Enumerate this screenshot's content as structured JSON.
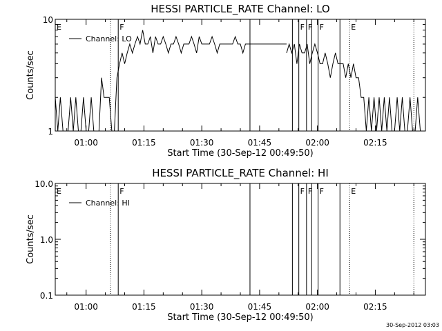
{
  "chart_data": [
    {
      "type": "line",
      "title": "HESSI PARTICLE_RATE Channel: LO",
      "xlabel": "Start Time (30-Sep-12 00:49:50)",
      "ylabel": "Counts/sec",
      "xlim": [
        "00:52",
        "02:28"
      ],
      "ylim": [
        1,
        10
      ],
      "yscale": "log",
      "yticks": [
        "1",
        "10"
      ],
      "xticks": [
        "01:00",
        "01:15",
        "01:30",
        "01:45",
        "02:00",
        "02:15"
      ],
      "grid": false,
      "legend": {
        "position": "top-left",
        "entries": [
          "Channel: LO"
        ]
      },
      "series": [
        {
          "name": "Channel: LO",
          "segments": [
            {
              "x": [
                "00:52:00",
                "00:52:40",
                "00:53:20",
                "00:54:00",
                "00:54:40",
                "00:55:20",
                "00:56:00",
                "00:56:40",
                "00:57:20",
                "00:58:00",
                "00:58:40",
                "00:59:20",
                "01:00:00",
                "01:00:40",
                "01:01:20",
                "01:02:00",
                "01:02:40",
                "01:03:20",
                "01:04:00",
                "01:04:40",
                "01:05:20",
                "01:06:00",
                "01:06:40",
                "01:07:20",
                "01:08:00",
                "01:08:40",
                "01:09:20",
                "01:10:00",
                "01:10:40",
                "01:11:20",
                "01:12:00",
                "01:12:40",
                "01:13:20",
                "01:14:00",
                "01:14:40",
                "01:15:20",
                "01:16:00",
                "01:16:40",
                "01:17:20",
                "01:18:00",
                "01:18:40",
                "01:19:20",
                "01:20:00",
                "01:20:40",
                "01:21:20",
                "01:22:00",
                "01:22:40",
                "01:23:20",
                "01:24:00",
                "01:24:40",
                "01:25:20",
                "01:26:00",
                "01:26:40",
                "01:27:20",
                "01:28:00",
                "01:28:40",
                "01:29:20",
                "01:30:00",
                "01:30:40",
                "01:31:20",
                "01:32:00",
                "01:32:40",
                "01:33:20",
                "01:34:00",
                "01:34:40",
                "01:35:20",
                "01:36:00",
                "01:36:40",
                "01:37:20",
                "01:38:00",
                "01:38:40",
                "01:39:20",
                "01:40:00",
                "01:40:40",
                "01:41:20",
                "01:42:00",
                "01:42:40",
                "01:43:20"
              ],
              "y": [
                2,
                1,
                2,
                1,
                1,
                1,
                2,
                1,
                2,
                1,
                1,
                2,
                1,
                1,
                2,
                1,
                1,
                1,
                3,
                2,
                2,
                2,
                1,
                1,
                3,
                4,
                5,
                4,
                5,
                6,
                5,
                6,
                7,
                6,
                8,
                6,
                6,
                7,
                5,
                7,
                6,
                6,
                7,
                6,
                5,
                6,
                6,
                7,
                6,
                5,
                6,
                6,
                6,
                7,
                6,
                5,
                7,
                6,
                6,
                6,
                6,
                7,
                6,
                5,
                6,
                6,
                6,
                6,
                6,
                6,
                7,
                6,
                6,
                5,
                6,
                6,
                6,
                6
              ]
            },
            {
              "x": [
                "01:43:20",
                "01:44:00",
                "01:45:00",
                "01:46:00",
                "01:47:00",
                "01:48:00",
                "01:49:00",
                "01:50:00",
                "01:51:00",
                "01:52:00"
              ],
              "y": [
                6,
                6,
                6,
                6,
                6,
                6,
                6,
                6,
                6,
                6
              ]
            },
            {
              "x": [
                "01:52:00",
                "01:52:40",
                "01:53:20",
                "01:54:00",
                "01:54:40",
                "01:55:20",
                "01:56:00",
                "01:56:40",
                "01:57:20",
                "01:58:00",
                "01:58:40",
                "01:59:20",
                "02:00:00",
                "02:00:40",
                "02:01:20",
                "02:02:00",
                "02:02:40",
                "02:03:20",
                "02:04:00",
                "02:04:40",
                "02:05:20",
                "02:06:00",
                "02:06:40",
                "02:07:20",
                "02:08:00",
                "02:08:40",
                "02:09:20",
                "02:10:00",
                "02:10:40",
                "02:11:20",
                "02:12:00",
                "02:12:40",
                "02:13:20",
                "02:14:00",
                "02:14:40",
                "02:15:20",
                "02:16:00",
                "02:16:40",
                "02:17:20",
                "02:18:00",
                "02:18:40",
                "02:19:20",
                "02:20:00",
                "02:20:40",
                "02:21:20",
                "02:22:00",
                "02:22:40",
                "02:23:20",
                "02:24:00",
                "02:24:40",
                "02:25:20",
                "02:26:00",
                "02:26:40",
                "02:27:20",
                "02:28:00"
              ],
              "y": [
                5,
                6,
                5,
                6,
                4,
                6,
                5,
                5,
                6,
                4,
                5,
                6,
                5,
                4,
                4,
                5,
                4,
                3,
                4,
                5,
                4,
                4,
                4,
                3,
                4,
                3,
                4,
                3,
                3,
                2,
                2,
                1,
                2,
                1,
                2,
                1,
                2,
                1,
                2,
                1,
                2,
                1,
                1,
                2,
                1,
                2,
                1,
                1,
                2,
                1,
                1,
                2,
                1,
                1,
                1
              ]
            }
          ]
        }
      ],
      "annotations": [
        {
          "label": "E",
          "x": "00:52:00",
          "style": "none"
        },
        {
          "label": "F",
          "x": "01:08:20",
          "style": "solid"
        },
        {
          "label": "F",
          "x": "01:55:10",
          "style": "solid"
        },
        {
          "label": "F",
          "x": "01:57:10",
          "style": "solid"
        },
        {
          "label": "F",
          "x": "02:00:10",
          "style": "solid"
        },
        {
          "label": "E",
          "x": "02:08:20",
          "style": "dotted"
        }
      ],
      "vlines": [
        {
          "x": "01:06:20",
          "style": "dotted"
        },
        {
          "x": "01:08:20",
          "style": "solid"
        },
        {
          "x": "01:42:30",
          "style": "solid"
        },
        {
          "x": "01:53:30",
          "style": "solid"
        },
        {
          "x": "01:55:10",
          "style": "solid"
        },
        {
          "x": "01:57:10",
          "style": "solid"
        },
        {
          "x": "01:58:30",
          "style": "solid"
        },
        {
          "x": "02:00:10",
          "style": "solid"
        },
        {
          "x": "02:05:50",
          "style": "solid"
        },
        {
          "x": "02:08:20",
          "style": "dotted"
        },
        {
          "x": "02:25:00",
          "style": "dotted"
        }
      ]
    },
    {
      "type": "line",
      "title": "HESSI PARTICLE_RATE Channel: HI",
      "xlabel": "Start Time (30-Sep-12 00:49:50)",
      "ylabel": "Counts/sec",
      "xlim": [
        "00:52",
        "02:28"
      ],
      "ylim": [
        0.1,
        10
      ],
      "yscale": "log",
      "yticks": [
        "0.1",
        "1.0",
        "10.0"
      ],
      "xticks": [
        "01:00",
        "01:15",
        "01:30",
        "01:45",
        "02:00",
        "02:15"
      ],
      "grid": false,
      "legend": {
        "position": "top-left",
        "entries": [
          "Channel: HI"
        ]
      },
      "series": [
        {
          "name": "Channel: HI",
          "segments": []
        }
      ],
      "annotations": [
        {
          "label": "E",
          "x": "00:52:00",
          "style": "none"
        },
        {
          "label": "F",
          "x": "01:08:20",
          "style": "solid"
        },
        {
          "label": "F",
          "x": "01:55:10",
          "style": "solid"
        },
        {
          "label": "F",
          "x": "01:57:10",
          "style": "solid"
        },
        {
          "label": "F",
          "x": "02:00:10",
          "style": "solid"
        },
        {
          "label": "E",
          "x": "02:08:20",
          "style": "dotted"
        }
      ],
      "vlines": [
        {
          "x": "01:06:20",
          "style": "dotted"
        },
        {
          "x": "01:08:20",
          "style": "solid"
        },
        {
          "x": "01:42:30",
          "style": "solid"
        },
        {
          "x": "01:53:30",
          "style": "solid"
        },
        {
          "x": "01:55:10",
          "style": "solid"
        },
        {
          "x": "01:57:10",
          "style": "solid"
        },
        {
          "x": "01:58:30",
          "style": "solid"
        },
        {
          "x": "02:00:10",
          "style": "solid"
        },
        {
          "x": "02:05:50",
          "style": "solid"
        },
        {
          "x": "02:08:20",
          "style": "dotted"
        },
        {
          "x": "02:25:00",
          "style": "dotted"
        }
      ]
    }
  ],
  "footer": {
    "timestamp": "30-Sep-2012 03:03"
  },
  "colors": {
    "foreground": "#000000",
    "background": "#ffffff"
  }
}
